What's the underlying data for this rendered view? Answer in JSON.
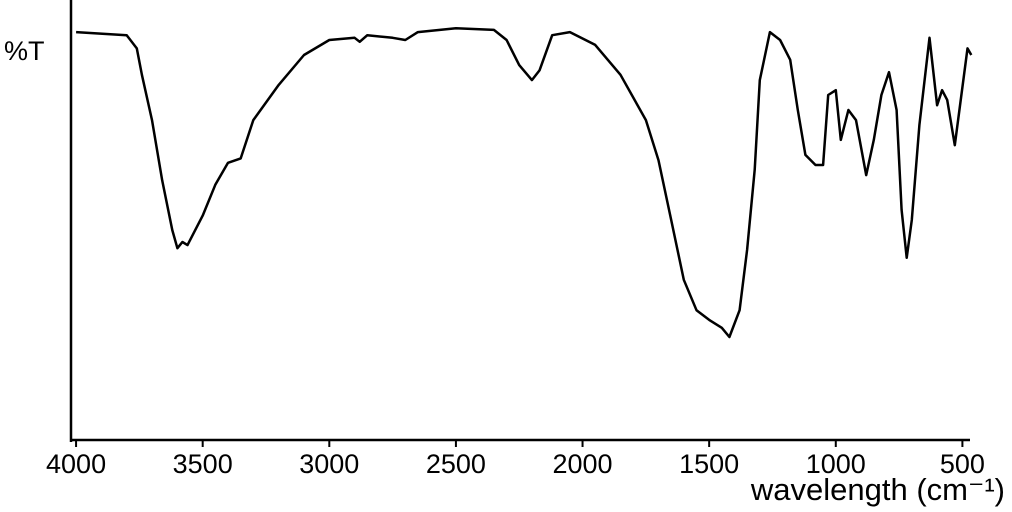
{
  "chart_data": {
    "type": "line",
    "y_label": "%T",
    "x_label": "wavelength (cm⁻¹)",
    "xlim": [
      4020,
      470
    ],
    "ylim": [
      0,
      100
    ],
    "xticks": [
      4000,
      3500,
      3000,
      2500,
      2000,
      1500,
      1000,
      500
    ],
    "x": [
      4000,
      3800,
      3760,
      3740,
      3700,
      3660,
      3620,
      3600,
      3580,
      3560,
      3500,
      3450,
      3400,
      3350,
      3300,
      3200,
      3100,
      3000,
      2900,
      2880,
      2850,
      2750,
      2700,
      2650,
      2500,
      2350,
      2300,
      2250,
      2200,
      2170,
      2120,
      2050,
      1950,
      1850,
      1750,
      1700,
      1650,
      1600,
      1550,
      1500,
      1450,
      1420,
      1380,
      1350,
      1320,
      1300,
      1260,
      1220,
      1180,
      1150,
      1120,
      1080,
      1050,
      1030,
      1000,
      980,
      950,
      920,
      880,
      850,
      820,
      790,
      760,
      740,
      720,
      700,
      670,
      630,
      600,
      580,
      560,
      530,
      480,
      465
    ],
    "series": [
      {
        "color": "#000000",
        "values": [
          92.7,
          92,
          89,
          83,
          72.7,
          59,
          47.7,
          43.6,
          45,
          44.3,
          51,
          58,
          63,
          64,
          72.7,
          80.7,
          87.5,
          90.9,
          91.4,
          90.5,
          92,
          91.4,
          90.9,
          92.7,
          93.6,
          93.2,
          90.9,
          85.2,
          81.8,
          84,
          92,
          92.7,
          89.8,
          83,
          72.7,
          63.6,
          50,
          36.4,
          29.5,
          27.3,
          25.5,
          23.4,
          29.5,
          43.2,
          61.4,
          81.8,
          92.7,
          90.9,
          86.4,
          75,
          64.8,
          62.5,
          62.5,
          78.4,
          79.5,
          68.2,
          75,
          72.7,
          60.2,
          68.2,
          78.4,
          83.6,
          75,
          52.3,
          41.4,
          50,
          71.6,
          91.4,
          76.1,
          79.5,
          77.3,
          67,
          89,
          87.5
        ]
      }
    ]
  }
}
